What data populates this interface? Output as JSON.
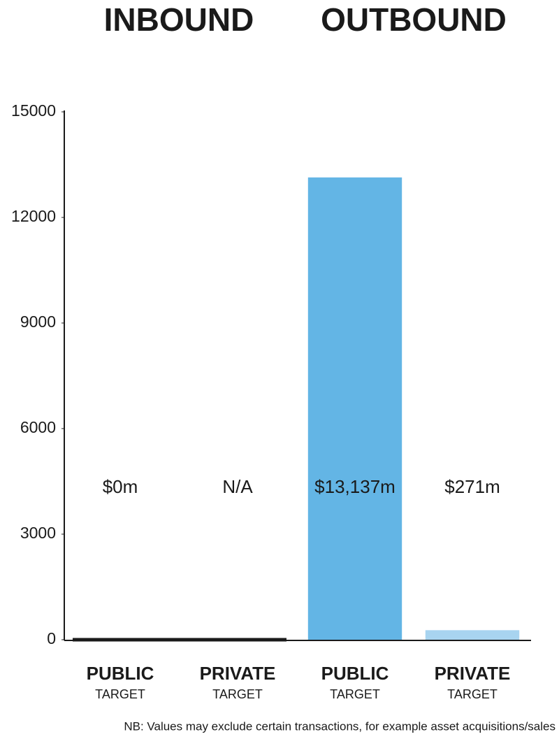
{
  "chart_data": {
    "type": "bar",
    "groups": [
      "INBOUND",
      "OUTBOUND"
    ],
    "categories": [
      "PUBLIC",
      "PRIVATE",
      "PUBLIC",
      "PRIVATE"
    ],
    "category_sublabels": [
      "TARGET",
      "TARGET",
      "TARGET",
      "TARGET"
    ],
    "values": [
      0,
      null,
      13137,
      271
    ],
    "value_labels": [
      "$0m",
      "N/A",
      "$13,137m",
      "$271m"
    ],
    "colors": [
      "#1a1a1a",
      "#1a1a1a",
      "#63b5e5",
      "#a8d4f0"
    ],
    "ylim": [
      0,
      15000
    ],
    "yticks": [
      0,
      3000,
      6000,
      9000,
      12000,
      15000
    ],
    "grid": false,
    "note": "NB: Values may exclude certain transactions, for example asset acquisitions/sales"
  }
}
